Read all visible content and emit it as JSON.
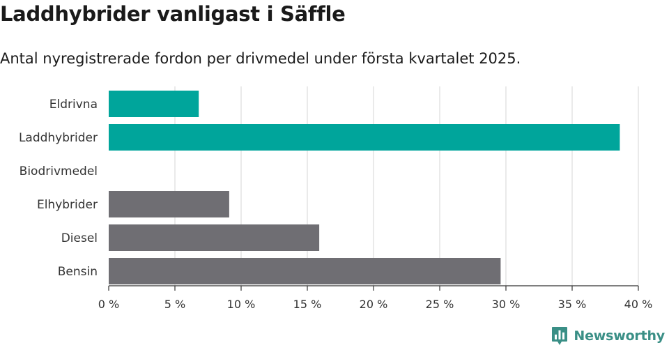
{
  "chart_data": {
    "type": "bar",
    "orientation": "horizontal",
    "title": "Laddhybrider vanligast i Säffle",
    "subtitle": "Antal nyregistrerade fordon per drivmedel under första kvartalet 2025.",
    "categories": [
      "Eldrivna",
      "Laddhybrider",
      "Biodrivmedel",
      "Elhybrider",
      "Diesel",
      "Bensin"
    ],
    "values": [
      6.8,
      38.6,
      0,
      9.1,
      15.9,
      29.6
    ],
    "bar_colors": [
      "#00a59b",
      "#00a59b",
      "#00a59b",
      "#6f6e73",
      "#6f6e73",
      "#6f6e73"
    ],
    "xlim": [
      0,
      40
    ],
    "x_ticks": [
      0,
      5,
      10,
      15,
      20,
      25,
      30,
      35,
      40
    ],
    "x_tick_labels": [
      "0 %",
      "5 %",
      "10 %",
      "15 %",
      "20 %",
      "25 %",
      "30 %",
      "35 %",
      "40 %"
    ],
    "grid": "vertical"
  },
  "brand": {
    "name": "Newsworthy",
    "icon": "bar-chart-badge-icon",
    "color": "#3a8f86"
  }
}
